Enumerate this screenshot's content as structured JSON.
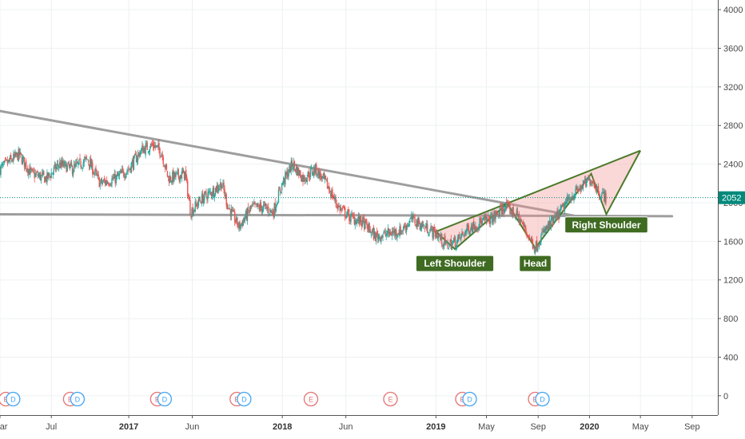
{
  "colors": {
    "up": "#26a69a",
    "down": "#ef5350",
    "grid": "#eef0f3",
    "trendline": "#9e9e9e",
    "pattern_stroke": "#4b7a2a",
    "pattern_fill": "rgba(244,143,143,0.35)",
    "annotation_bg": "#3f6b22",
    "price_tag": "#00897b",
    "earnings_red": "#e57373",
    "dividend_blue": "#42a5f5"
  },
  "chart_data": {
    "type": "candlestick",
    "y_axis": {
      "range": [
        -200,
        4100
      ],
      "ticks": [
        4000,
        3600,
        3200,
        2800,
        2400,
        2000,
        1600,
        1200,
        800,
        400,
        0
      ]
    },
    "x_axis": {
      "range": [
        "2016-03-01",
        "2020-11-01"
      ],
      "ticks": [
        {
          "label": "Mar",
          "date": "2016-03-01",
          "year": false
        },
        {
          "label": "Jul",
          "date": "2016-07-01",
          "year": false
        },
        {
          "label": "2017",
          "date": "2017-01-01",
          "year": true
        },
        {
          "label": "Jun",
          "date": "2017-06-01",
          "year": false
        },
        {
          "label": "2018",
          "date": "2018-01-01",
          "year": true
        },
        {
          "label": "Jun",
          "date": "2018-06-01",
          "year": false
        },
        {
          "label": "2019",
          "date": "2019-01-01",
          "year": true
        },
        {
          "label": "May",
          "date": "2019-05-01",
          "year": false
        },
        {
          "label": "Sep",
          "date": "2019-09-01",
          "year": false
        },
        {
          "label": "2020",
          "date": "2020-01-01",
          "year": true
        },
        {
          "label": "May",
          "date": "2020-05-01",
          "year": false
        },
        {
          "label": "Sep",
          "date": "2020-09-01",
          "year": false
        }
      ]
    },
    "last_price": {
      "value": 2052,
      "label": "2052"
    },
    "price_path": [
      [
        "2016-03-01",
        2350
      ],
      [
        "2016-04-15",
        2500
      ],
      [
        "2016-05-15",
        2300
      ],
      [
        "2016-06-20",
        2250
      ],
      [
        "2016-07-20",
        2400
      ],
      [
        "2016-08-20",
        2350
      ],
      [
        "2016-09-25",
        2450
      ],
      [
        "2016-10-25",
        2200
      ],
      [
        "2016-12-01",
        2250
      ],
      [
        "2017-01-01",
        2350
      ],
      [
        "2017-02-01",
        2550
      ],
      [
        "2017-03-01",
        2600
      ],
      [
        "2017-03-20",
        2520
      ],
      [
        "2017-04-05",
        2250
      ],
      [
        "2017-05-15",
        2300
      ],
      [
        "2017-05-28",
        1900
      ],
      [
        "2017-06-20",
        2030
      ],
      [
        "2017-07-20",
        2120
      ],
      [
        "2017-08-10",
        2200
      ],
      [
        "2017-08-25",
        1960
      ],
      [
        "2017-09-20",
        1750
      ],
      [
        "2017-10-20",
        1950
      ],
      [
        "2017-11-20",
        1950
      ],
      [
        "2017-12-10",
        1900
      ],
      [
        "2018-01-01",
        2200
      ],
      [
        "2018-01-25",
        2400
      ],
      [
        "2018-02-20",
        2250
      ],
      [
        "2018-03-20",
        2350
      ],
      [
        "2018-04-15",
        2200
      ],
      [
        "2018-05-15",
        1950
      ],
      [
        "2018-06-10",
        1850
      ],
      [
        "2018-07-10",
        1800
      ],
      [
        "2018-08-10",
        1650
      ],
      [
        "2018-09-10",
        1680
      ],
      [
        "2018-10-10",
        1710
      ],
      [
        "2018-11-05",
        1830
      ],
      [
        "2018-12-01",
        1760
      ],
      [
        "2019-01-01",
        1680
      ],
      [
        "2019-01-25",
        1560
      ],
      [
        "2019-02-20",
        1600
      ],
      [
        "2019-03-20",
        1740
      ],
      [
        "2019-04-20",
        1800
      ],
      [
        "2019-05-20",
        1850
      ],
      [
        "2019-06-15",
        1960
      ],
      [
        "2019-07-15",
        1860
      ],
      [
        "2019-08-10",
        1650
      ],
      [
        "2019-08-25",
        1530
      ],
      [
        "2019-09-15",
        1700
      ],
      [
        "2019-10-15",
        1850
      ],
      [
        "2019-11-15",
        2050
      ],
      [
        "2019-12-10",
        2150
      ],
      [
        "2020-01-05",
        2250
      ],
      [
        "2020-01-25",
        2100
      ],
      [
        "2020-02-10",
        2052
      ]
    ],
    "trendlines": [
      {
        "name": "descending-resistance",
        "from": [
          "2016-03-01",
          2950
        ],
        "to": [
          "2020-05-01",
          1740
        ]
      },
      {
        "name": "horizontal-support",
        "from": [
          "2016-03-01",
          1880
        ],
        "to": [
          "2020-07-15",
          1860
        ]
      }
    ],
    "pattern": {
      "name": "inverse head and shoulders",
      "points": [
        [
          "2019-01-01",
          1700
        ],
        [
          "2019-02-15",
          1520
        ],
        [
          "2019-06-20",
          1990
        ],
        [
          "2019-08-25",
          1530
        ],
        [
          "2020-01-05",
          2300
        ],
        [
          "2020-02-10",
          1880
        ],
        [
          "2020-05-01",
          2540
        ]
      ],
      "upper_line": [
        [
          "2019-01-01",
          1700
        ],
        [
          "2020-05-01",
          2540
        ]
      ]
    },
    "annotations": [
      {
        "text": "Left Shoulder",
        "date": "2019-02-15",
        "value": 1370
      },
      {
        "text": "Head",
        "date": "2019-08-25",
        "value": 1370
      },
      {
        "text": "Right Shoulder",
        "date": "2020-02-10",
        "value": 1770
      }
    ],
    "events": [
      {
        "date": "2016-03-15",
        "marks": [
          "E",
          "D"
        ]
      },
      {
        "date": "2016-08-15",
        "marks": [
          "E",
          "D"
        ]
      },
      {
        "date": "2017-03-10",
        "marks": [
          "E",
          "D"
        ]
      },
      {
        "date": "2017-09-15",
        "marks": [
          "E",
          "D"
        ]
      },
      {
        "date": "2018-03-10",
        "marks": [
          "E"
        ]
      },
      {
        "date": "2018-09-15",
        "marks": [
          "E"
        ]
      },
      {
        "date": "2019-03-05",
        "marks": [
          "E",
          "D"
        ]
      },
      {
        "date": "2019-08-25",
        "marks": [
          "E",
          "D"
        ]
      }
    ]
  }
}
